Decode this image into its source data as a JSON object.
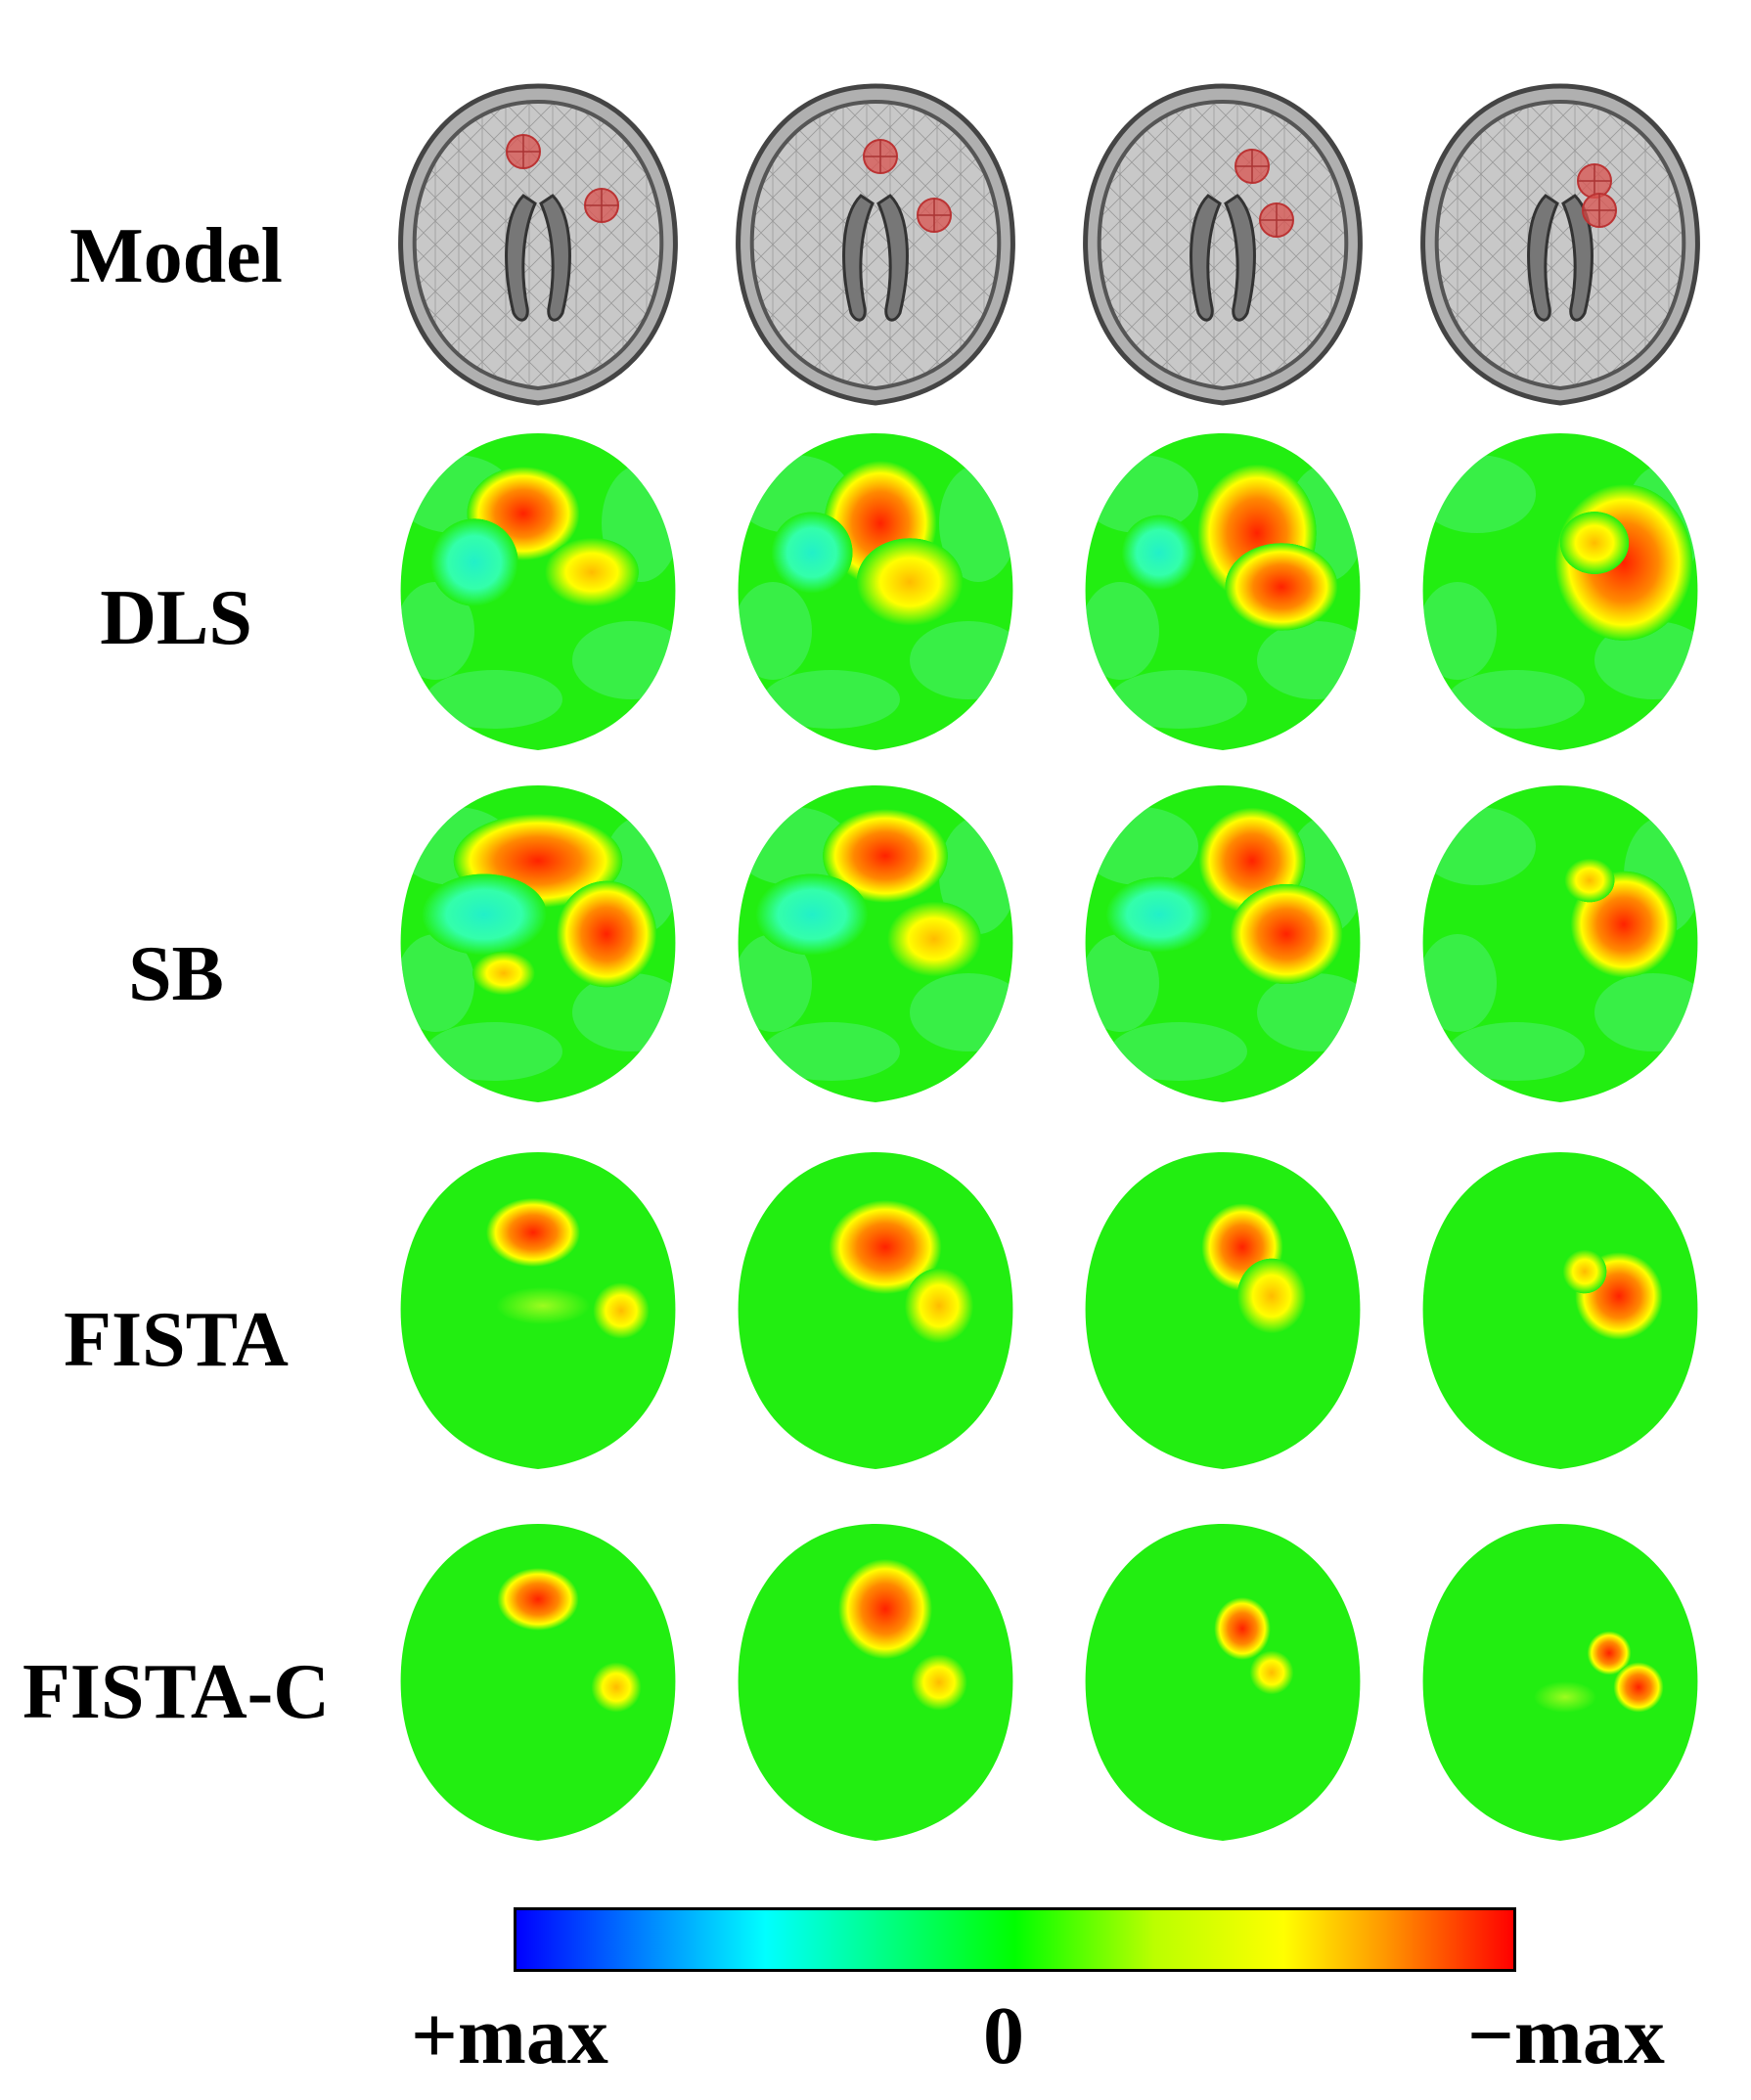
{
  "rows": [
    "Model",
    "DLS",
    "SB",
    "FISTA",
    "FISTA-C"
  ],
  "colorbar": {
    "left_label": "+max",
    "center_label": "0",
    "right_label": "−max"
  },
  "colors": {
    "background_green": "#22ee11",
    "hot": "#ff2200",
    "warm": "#ffcc00",
    "cool": "#22f0c8",
    "model_target": "#d9534f",
    "head_gray": "#c8c8c8"
  }
}
